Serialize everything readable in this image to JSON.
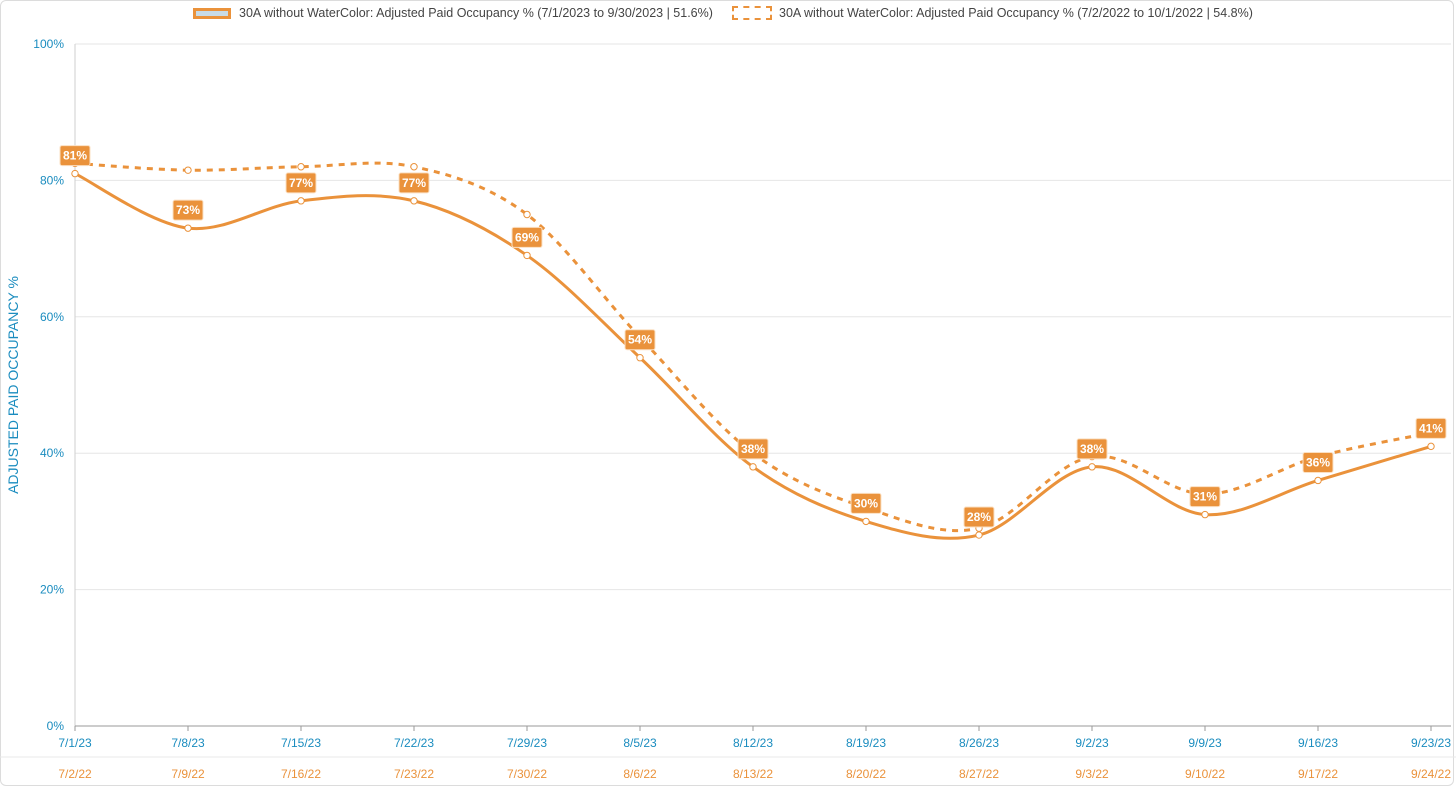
{
  "legend": {
    "series1": "30A without WaterColor: Adjusted Paid Occupancy % (7/1/2023 to 9/30/2023 | 51.6%)",
    "series2": "30A without WaterColor: Adjusted Paid Occupancy % (7/2/2022 to 10/1/2022 | 54.8%)"
  },
  "colors": {
    "line": "#ea923b",
    "axis_text": "#1a8cbf",
    "grid": "#e6e6e6",
    "marker_fill": "#ffffff"
  },
  "chart_data": {
    "type": "line",
    "ylabel": "ADJUSTED PAID OCCUPANCY %",
    "ylim": [
      0,
      100
    ],
    "yticks": [
      "0%",
      "20%",
      "40%",
      "60%",
      "80%",
      "100%"
    ],
    "grid": true,
    "legend_position": "top",
    "categories": [
      "7/1/23",
      "7/8/23",
      "7/15/23",
      "7/22/23",
      "7/29/23",
      "8/5/23",
      "8/12/23",
      "8/19/23",
      "8/26/23",
      "9/2/23",
      "9/9/23",
      "9/16/23",
      "9/23/23"
    ],
    "categories_secondary": [
      "7/2/22",
      "7/9/22",
      "7/16/22",
      "7/23/22",
      "7/30/22",
      "8/6/22",
      "8/13/22",
      "8/20/22",
      "8/27/22",
      "9/3/22",
      "9/10/22",
      "9/17/22",
      "9/24/22"
    ],
    "series": [
      {
        "name": "30A without WaterColor: Adjusted Paid Occupancy % (7/1/2023 to 9/30/2023 | 51.6%)",
        "style": "solid",
        "values": [
          81,
          73,
          77,
          77,
          69,
          54,
          38,
          30,
          28,
          38,
          31,
          36,
          41
        ],
        "labels": [
          "81%",
          "73%",
          "77%",
          "77%",
          "69%",
          "54%",
          "38%",
          "30%",
          "28%",
          "38%",
          "31%",
          "36%",
          "41%"
        ]
      },
      {
        "name": "30A without WaterColor: Adjusted Paid Occupancy % (7/2/2022 to 10/1/2022 | 54.8%)",
        "style": "dashed",
        "values": [
          82.5,
          81.5,
          82,
          82,
          75,
          57,
          40,
          32,
          29,
          39.5,
          34,
          39.5,
          43
        ]
      }
    ]
  }
}
